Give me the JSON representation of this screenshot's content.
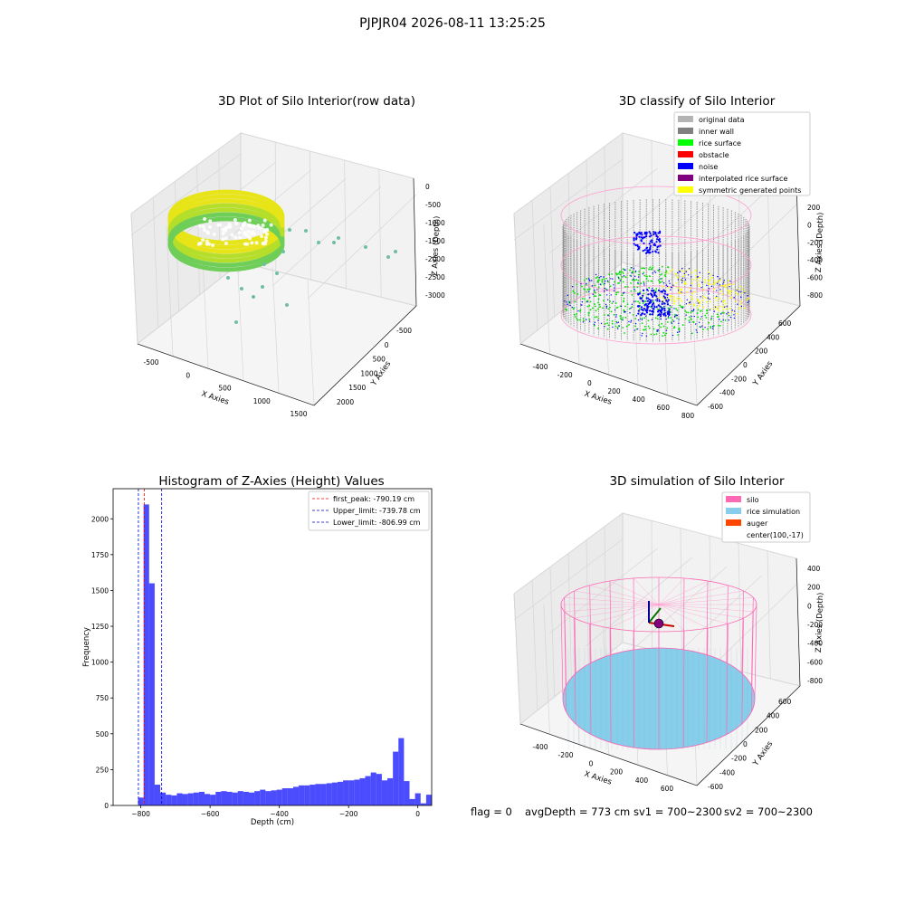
{
  "suptitle": "PJPJR04 2026-08-11 13:25:25",
  "panels": {
    "raw": {
      "title": "3D Plot of Silo Interior(row data)",
      "xlabel": "X Axies",
      "ylabel": "Y Axies",
      "zlabel": "Z Axies (Depth)",
      "xticks": [
        "-500",
        "0",
        "500",
        "1000",
        "1500"
      ],
      "yticks": [
        "-500",
        "0",
        "500",
        "1000",
        "1500",
        "2000"
      ],
      "zticks": [
        "0",
        "-500",
        "-1000",
        "-1500",
        "-2000",
        "-2500",
        "-3000"
      ]
    },
    "classify": {
      "title": "3D classify of Silo Interior",
      "xlabel": "X Axies",
      "ylabel": "Y Axies",
      "zlabel": "Z Axies (Depth)",
      "xticks": [
        "-400",
        "-200",
        "0",
        "200",
        "400",
        "600",
        "800"
      ],
      "yticks": [
        "-600",
        "-400",
        "-200",
        "0",
        "200",
        "400",
        "600"
      ],
      "zticks": [
        "200",
        "0",
        "-200",
        "-400",
        "-600",
        "-800"
      ],
      "legend": [
        {
          "label": "original data",
          "color": "#b4b4b4"
        },
        {
          "label": "inner wall",
          "color": "#808080"
        },
        {
          "label": "rice surface",
          "color": "#00ff00"
        },
        {
          "label": "obstacle",
          "color": "#ff0000"
        },
        {
          "label": "noise",
          "color": "#0000ff"
        },
        {
          "label": "interpolated rice surface",
          "color": "#800080"
        },
        {
          "label": "symmetric generated points",
          "color": "#ffff00"
        }
      ]
    },
    "simulation": {
      "title": "3D simulation of Silo Interior",
      "xlabel": "X Axies",
      "ylabel": "Y Axies",
      "zlabel": "Z Axies (Depth)",
      "xticks": [
        "-400",
        "-200",
        "0",
        "200",
        "400",
        "600"
      ],
      "yticks": [
        "-600",
        "-400",
        "-200",
        "0",
        "200",
        "400",
        "600"
      ],
      "zticks": [
        "400",
        "200",
        "0",
        "-200",
        "-400",
        "-600",
        "-800"
      ],
      "legend": [
        {
          "label": "silo",
          "color": "#ff69b4"
        },
        {
          "label": "rice simulation",
          "color": "#87ceeb"
        },
        {
          "label": "auger",
          "color": "#ff4500"
        },
        {
          "label": "center(100,-17)",
          "color": ""
        }
      ]
    }
  },
  "status": {
    "flag": "flag = 0",
    "avg": "avgDepth = 773 cm",
    "sv1": "sv1 = 700~2300",
    "sv2": "sv2 = 700~2300"
  },
  "chart_data": [
    {
      "type": "bar",
      "title": "Histogram of Z-Axies (Height) Values",
      "xlabel": "Depth (cm)",
      "ylabel": "Frequency",
      "xlim": [
        -880,
        40
      ],
      "ylim": [
        0,
        2210
      ],
      "xticks": [
        -800,
        -600,
        -400,
        -200,
        0
      ],
      "yticks": [
        0,
        250,
        500,
        750,
        1000,
        1250,
        1500,
        1750,
        2000
      ],
      "bar_color": "#0000ff",
      "bin_width": 16,
      "bin_edges_start": -808,
      "values": [
        55,
        2100,
        1550,
        145,
        90,
        75,
        70,
        85,
        80,
        85,
        90,
        95,
        80,
        75,
        95,
        100,
        95,
        90,
        100,
        95,
        90,
        100,
        110,
        100,
        105,
        110,
        120,
        120,
        130,
        140,
        140,
        145,
        150,
        150,
        155,
        160,
        165,
        175,
        175,
        180,
        190,
        205,
        230,
        220,
        175,
        190,
        375,
        470,
        170,
        45,
        85,
        15,
        75
      ],
      "vlines": [
        {
          "name": "first_peak: -790.19 cm",
          "x": -790.19,
          "color": "#ff0000"
        },
        {
          "name": "Upper_limit: -739.78 cm",
          "x": -739.78,
          "color": "#0000cc"
        },
        {
          "name": "Lower_limit: -806.99 cm",
          "x": -806.99,
          "color": "#0000cc"
        }
      ],
      "legend_position": "top-right"
    }
  ]
}
